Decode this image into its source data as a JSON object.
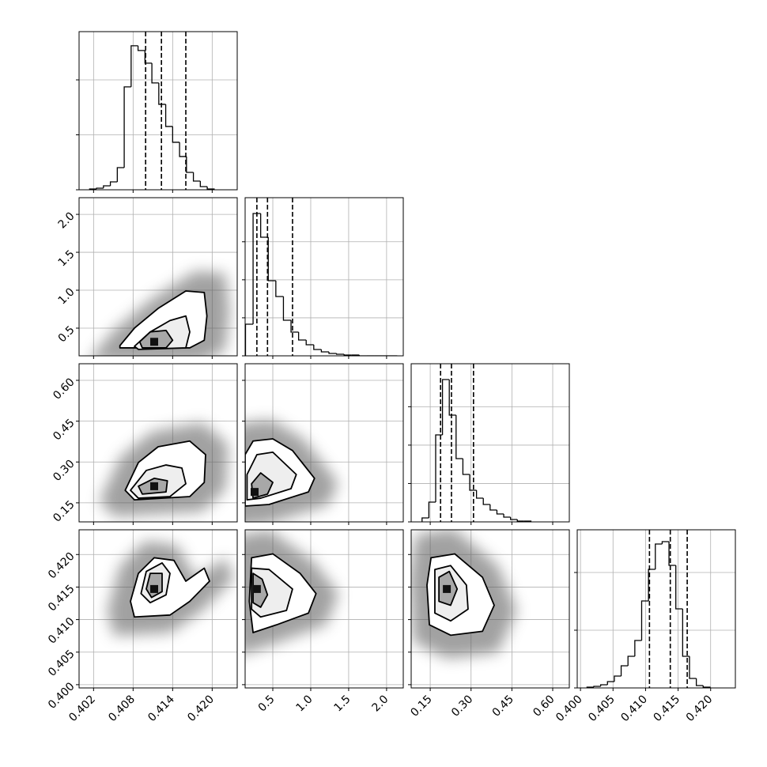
{
  "chart_data": {
    "type": "corner",
    "parameters": [
      {
        "xlim": [
          0.3998,
          0.4238
        ],
        "xticks": [
          0.402,
          0.408,
          0.414,
          {
            "value": 0.42,
            "label": "0.420"
          }
        ],
        "quantiles": [
          0.4099,
          0.4123,
          0.416
        ],
        "bins": [
          0.4014,
          0.40245,
          0.4035,
          0.40455,
          0.4056,
          0.40665,
          0.4077,
          0.40875,
          0.4098,
          0.41085,
          0.4119,
          0.41295,
          0.414,
          0.41505,
          0.4161,
          0.41715,
          0.4182,
          0.41925,
          0.4203
        ],
        "values": [
          14,
          29,
          72,
          144,
          403,
          1872,
          2621,
          2534,
          2304,
          1944,
          1555,
          1152,
          864,
          605,
          317,
          158,
          58,
          14
        ],
        "hist_ylim": [
          0,
          2878
        ],
        "hist_yticks": [
          0,
          1000,
          2000
        ]
      },
      {
        "xlim": [
          0.135,
          2.22
        ],
        "xticks": [
          0.5,
          {
            "value": 1,
            "label": "1.0"
          },
          1.5,
          {
            "value": 2,
            "label": "2.0"
          }
        ],
        "quantiles": [
          0.29,
          0.43,
          0.76
        ],
        "bins": [
          0.14,
          0.24,
          0.34,
          0.44,
          0.54,
          0.64,
          0.74,
          0.84,
          0.94,
          1.04,
          1.14,
          1.24,
          1.34,
          1.44,
          1.54,
          1.64,
          1.74,
          1.84,
          1.94,
          2.04,
          2.14
        ],
        "values": [
          832,
          3744,
          3120,
          1976,
          1560,
          936,
          624,
          416,
          291,
          166,
          104,
          62,
          42,
          21,
          21,
          0,
          0,
          0,
          0,
          0
        ],
        "hist_ylim": [
          0,
          4160
        ],
        "hist_yticks": [
          0,
          1000,
          2000,
          3000
        ]
      },
      {
        "xlim": [
          0.08,
          0.661
        ],
        "xticks": [
          0.15,
          {
            "value": 0.3,
            "label": "0.30"
          },
          0.45,
          {
            "value": 0.6,
            "label": "0.60"
          }
        ],
        "quantiles": [
          0.188,
          0.228,
          0.309
        ],
        "bins": [
          0.12,
          0.145,
          0.17,
          0.195,
          0.22,
          0.245,
          0.27,
          0.295,
          0.32,
          0.345,
          0.37,
          0.395,
          0.42,
          0.445,
          0.47,
          0.495,
          0.52
        ],
        "values": [
          103,
          515,
          2266,
          3708,
          2781,
          1648,
          1236,
          824,
          618,
          453,
          309,
          206,
          124,
          62,
          21,
          21
        ],
        "hist_ylim": [
          0,
          4120
        ],
        "hist_yticks": [
          0,
          1000,
          2000,
          3000
        ]
      },
      {
        "xlim": [
          0.3995,
          0.4238
        ],
        "xticks": [
          {
            "value": 0.4,
            "label": "0.400"
          },
          0.405,
          {
            "value": 0.41,
            "label": "0.410"
          },
          0.415,
          {
            "value": 0.42,
            "label": "0.420"
          }
        ],
        "quantiles": [
          0.4106,
          0.4138,
          0.4164
        ],
        "bins": [
          0.401,
          0.40205,
          0.4031,
          0.40415,
          0.4052,
          0.40625,
          0.4073,
          0.40835,
          0.4094,
          0.41045,
          0.4115,
          0.41255,
          0.4136,
          0.41465,
          0.4157,
          0.41675,
          0.4178,
          0.41885,
          0.4199
        ],
        "values": [
          14,
          27,
          55,
          110,
          206,
          384,
          548,
          822,
          1507,
          2055,
          2493,
          2535,
          2124,
          1370,
          548,
          164,
          41,
          14
        ],
        "hist_ylim": [
          0,
          2740
        ],
        "hist_yticks": [
          0,
          1000,
          2000
        ]
      }
    ],
    "pairs": [
      {
        "contours": [
          {
            "x": [
              0.406,
              0.4082,
              0.4118,
              0.416,
              0.4188,
              0.4192,
              0.4188,
              0.4166,
              0.406
            ],
            "y": [
              0.27,
              0.5,
              0.76,
              0.99,
              0.97,
              0.66,
              0.34,
              0.24,
              0.24
            ]
          },
          {
            "x": [
              0.4082,
              0.4106,
              0.4136,
              0.416,
              0.4166,
              0.416,
              0.4088
            ],
            "y": [
              0.26,
              0.45,
              0.6,
              0.66,
              0.45,
              0.24,
              0.22
            ]
          },
          {
            "x": [
              0.409,
              0.4106,
              0.413,
              0.414,
              0.413,
              0.4094
            ],
            "y": [
              0.32,
              0.45,
              0.47,
              0.34,
              0.24,
              0.24
            ]
          }
        ],
        "peak": [
          0.4112,
          0.32
        ]
      },
      {
        "contours": [
          {
            "x": [
              0.4068,
              0.4088,
              0.4118,
              0.4166,
              0.419,
              0.4188,
              0.4166,
              0.4082
            ],
            "y": [
              0.196,
              0.298,
              0.356,
              0.377,
              0.327,
              0.225,
              0.173,
              0.161
            ]
          },
          {
            "x": [
              0.4076,
              0.41,
              0.413,
              0.4154,
              0.416,
              0.4136,
              0.4088
            ],
            "y": [
              0.196,
              0.269,
              0.289,
              0.278,
              0.22,
              0.173,
              0.167
            ]
          },
          {
            "x": [
              0.4088,
              0.4112,
              0.4132,
              0.413,
              0.4094
            ],
            "y": [
              0.211,
              0.24,
              0.231,
              0.19,
              0.182
            ]
          }
        ],
        "peak": [
          0.4112,
          0.211
        ]
      },
      {
        "contours": [
          {
            "x": [
              0.135,
              0.24,
              0.5,
              0.76,
              1.05,
              0.97,
              0.45,
              0.135
            ],
            "y": [
              0.327,
              0.377,
              0.385,
              0.342,
              0.24,
              0.19,
              0.144,
              0.138
            ]
          },
          {
            "x": [
              0.16,
              0.29,
              0.5,
              0.81,
              0.74,
              0.34,
              0.16
            ],
            "y": [
              0.254,
              0.327,
              0.336,
              0.254,
              0.202,
              0.167,
              0.161
            ]
          },
          {
            "x": [
              0.22,
              0.34,
              0.5,
              0.43,
              0.24
            ],
            "y": [
              0.22,
              0.26,
              0.225,
              0.182,
              0.167
            ]
          }
        ],
        "peak": [
          0.26,
          0.19
        ]
      },
      {
        "contours": [
          {
            "x": [
              0.4076,
              0.4088,
              0.4112,
              0.4142,
              0.416,
              0.4188,
              0.4196,
              0.4166,
              0.4136,
              0.4082
            ],
            "y": [
              0.4128,
              0.4171,
              0.4195,
              0.4191,
              0.4159,
              0.4179,
              0.4159,
              0.4128,
              0.4107,
              0.4104
            ]
          },
          {
            "x": [
              0.4092,
              0.41,
              0.4124,
              0.4136,
              0.413,
              0.4106
            ],
            "y": [
              0.414,
              0.4174,
              0.4187,
              0.4171,
              0.4138,
              0.4126
            ]
          },
          {
            "x": [
              0.41,
              0.4106,
              0.4124,
              0.4124,
              0.4108
            ],
            "y": [
              0.4147,
              0.4171,
              0.4171,
              0.4143,
              0.4134
            ]
          }
        ],
        "peak": [
          0.4112,
          0.4147
        ]
      },
      {
        "contours": [
          {
            "x": [
              0.22,
              0.5,
              0.86,
              1.07,
              0.97,
              0.55,
              0.24,
              0.19
            ],
            "y": [
              0.4195,
              0.4201,
              0.4171,
              0.414,
              0.411,
              0.4092,
              0.408,
              0.4128
            ]
          },
          {
            "x": [
              0.22,
              0.45,
              0.76,
              0.68,
              0.34,
              0.22
            ],
            "y": [
              0.4179,
              0.4177,
              0.4147,
              0.4114,
              0.4104,
              0.4116
            ]
          },
          {
            "x": [
              0.24,
              0.36,
              0.43,
              0.34,
              0.24
            ],
            "y": [
              0.4171,
              0.4162,
              0.4138,
              0.4119,
              0.4126
            ]
          }
        ],
        "peak": [
          0.29,
          0.4147
        ]
      },
      {
        "contours": [
          {
            "x": [
              0.153,
              0.24,
              0.342,
              0.385,
              0.342,
              0.225,
              0.147,
              0.138
            ],
            "y": [
              0.4195,
              0.4201,
              0.4165,
              0.4122,
              0.4082,
              0.4076,
              0.4092,
              0.4153
            ]
          },
          {
            "x": [
              0.167,
              0.225,
              0.283,
              0.289,
              0.225,
              0.167
            ],
            "y": [
              0.4177,
              0.4183,
              0.4153,
              0.4116,
              0.4098,
              0.411
            ]
          },
          {
            "x": [
              0.182,
              0.22,
              0.249,
              0.225,
              0.182
            ],
            "y": [
              0.4165,
              0.4174,
              0.4147,
              0.4122,
              0.4128
            ]
          }
        ],
        "peak": [
          0.211,
          0.4147
        ]
      }
    ]
  }
}
